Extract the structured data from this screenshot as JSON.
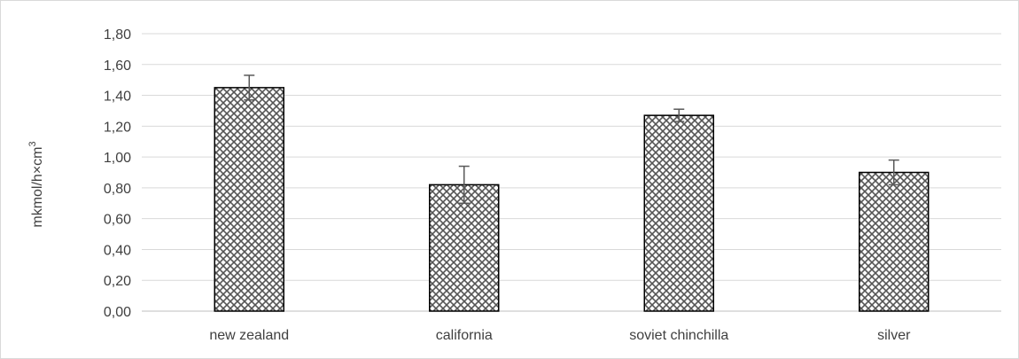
{
  "chart_data": {
    "type": "bar",
    "title": "",
    "xlabel": "",
    "ylabel": "mkmol/h×cm",
    "ylabel_superscript": "3",
    "categories": [
      "new zealand",
      "california",
      "soviet chinchilla",
      "silver"
    ],
    "values": [
      1.45,
      0.82,
      1.27,
      0.9
    ],
    "errors": [
      0.08,
      0.12,
      0.04,
      0.08
    ],
    "ylim": [
      0,
      1.8
    ],
    "yticks": [
      "0,00",
      "0,20",
      "0,40",
      "0,60",
      "0,80",
      "1,00",
      "1,20",
      "1,40",
      "1,60",
      "1,80"
    ],
    "grid": true,
    "legend": "none",
    "bar_pattern": "crosshatch",
    "colors": {
      "bar_fill": "#ffffff",
      "bar_pattern": "#555555",
      "bar_edge": "#000000",
      "grid": "#d9d9d9",
      "error_bar": "#595959"
    }
  }
}
